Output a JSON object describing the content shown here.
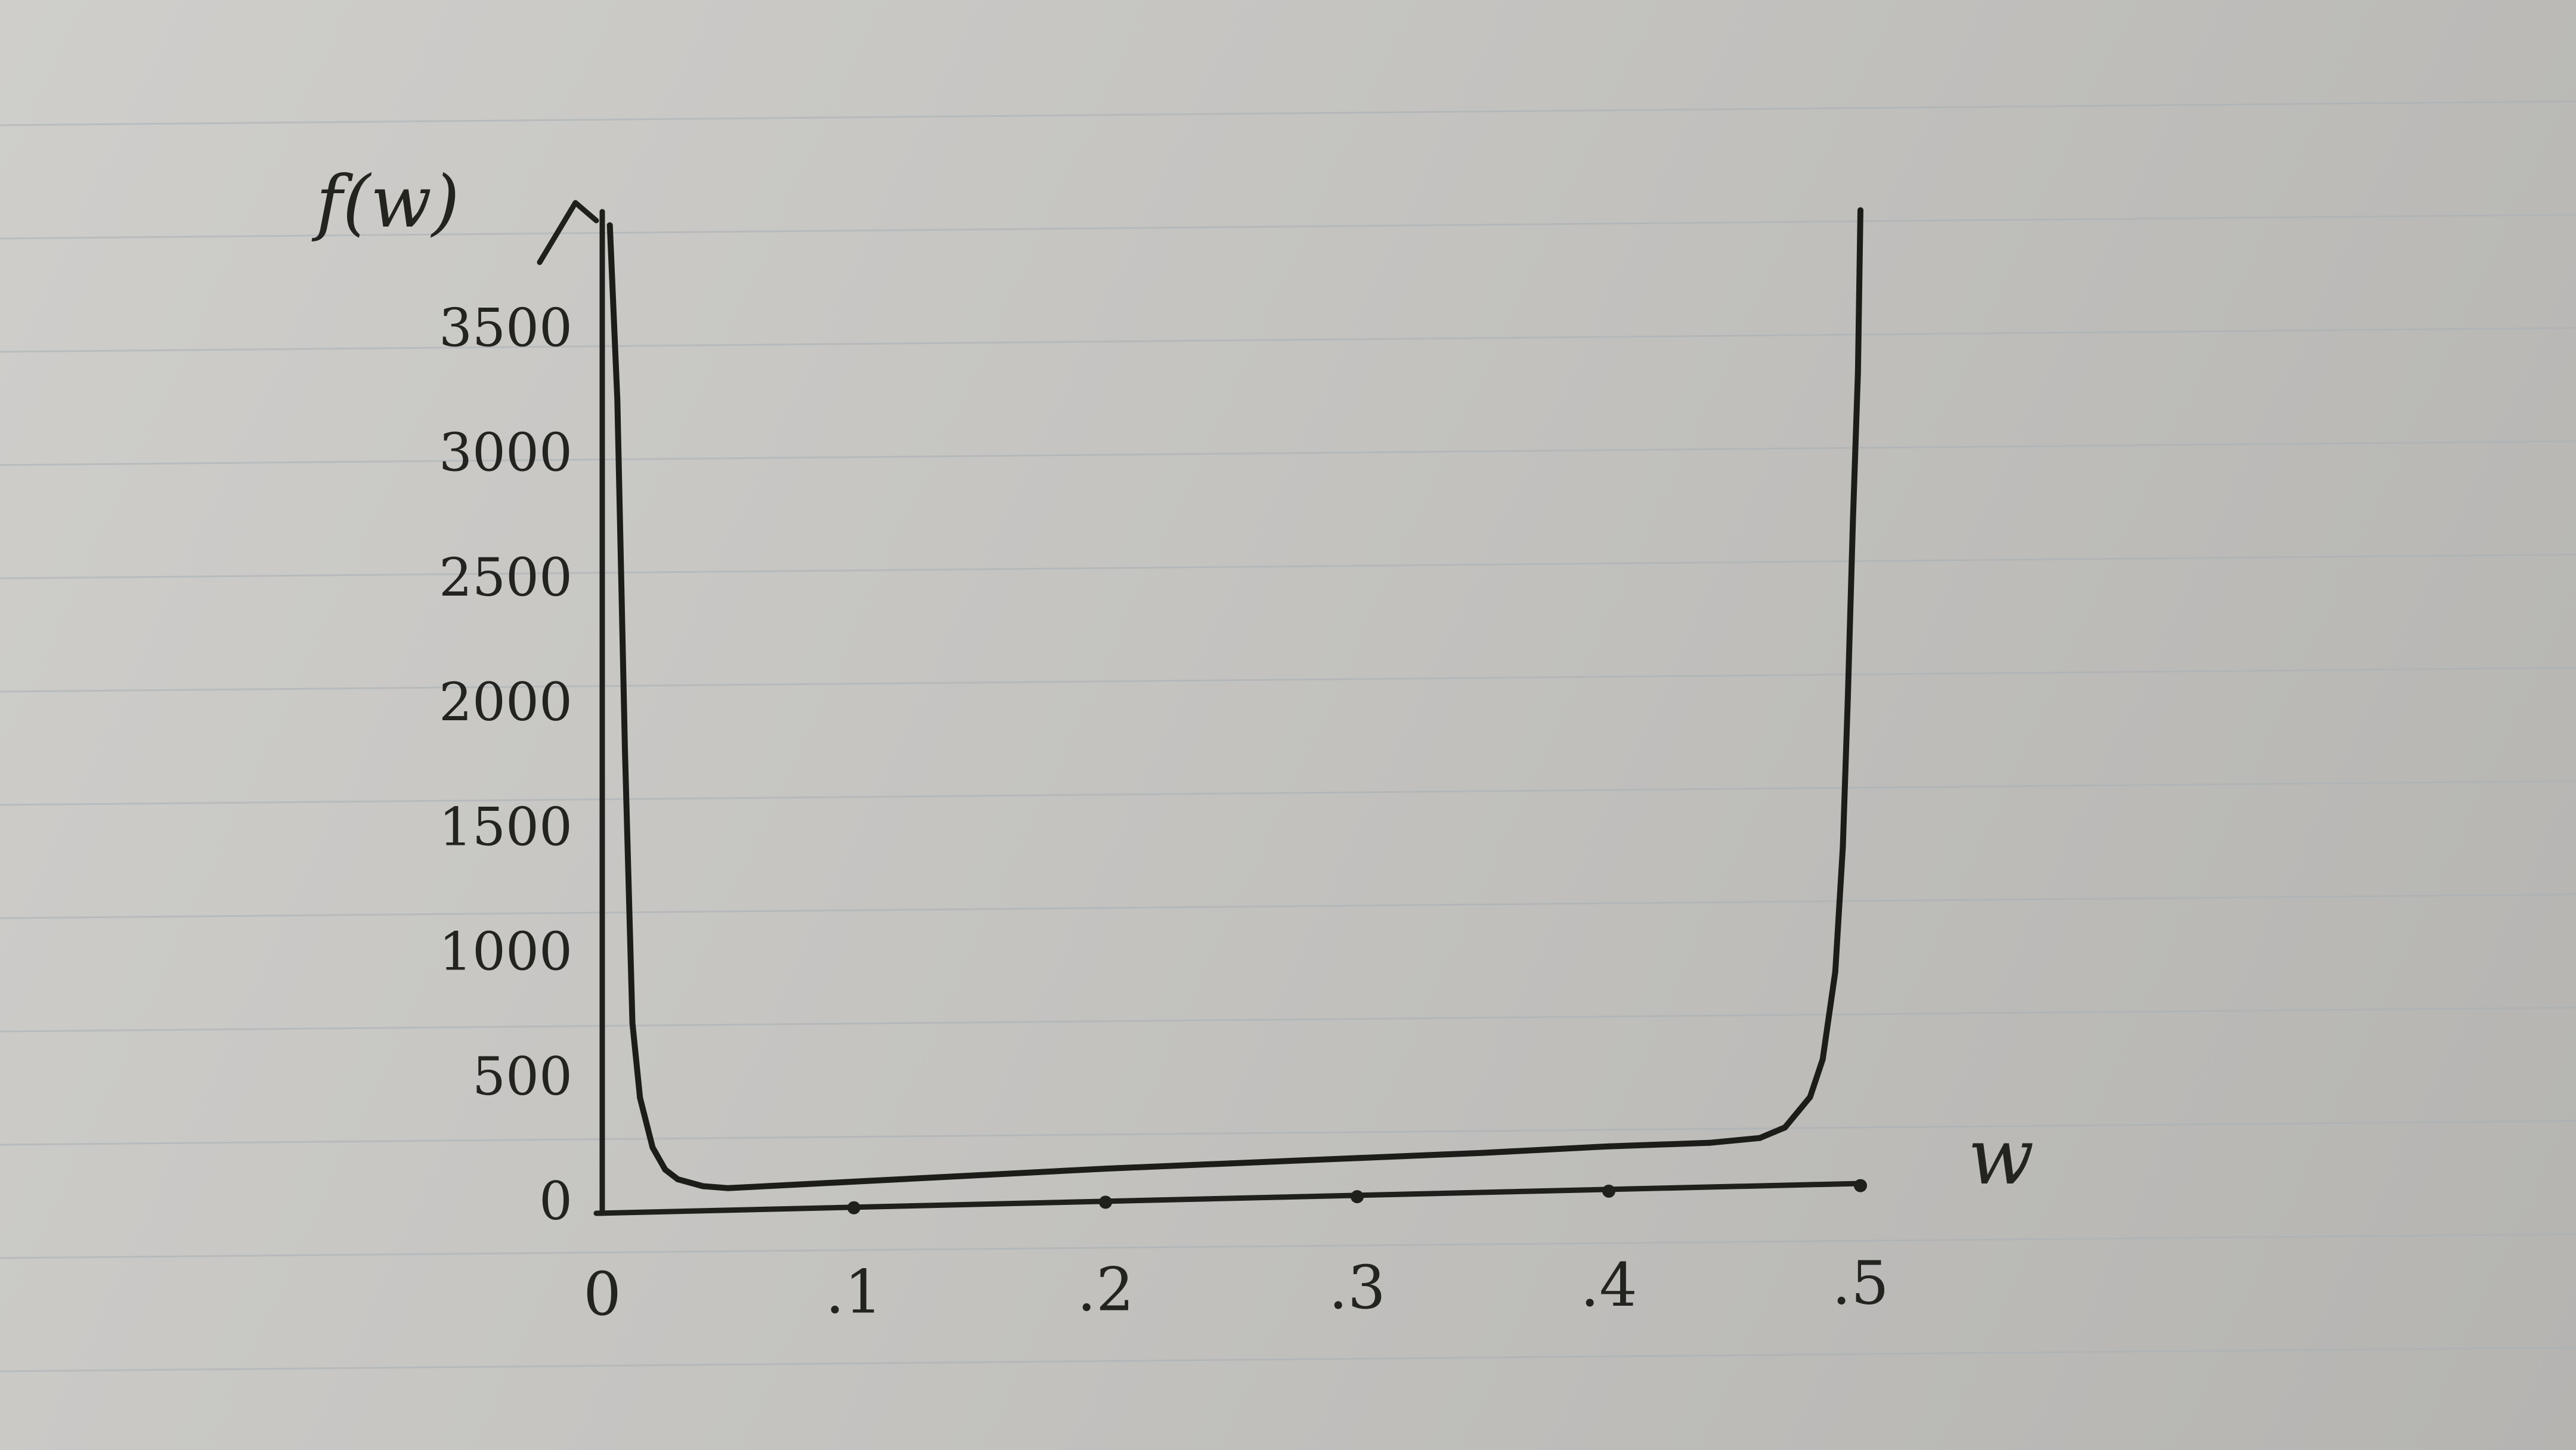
{
  "chart_data": {
    "type": "line",
    "title": "",
    "ylabel": "f(w)",
    "xlabel": "w",
    "xlim": [
      0,
      0.5
    ],
    "ylim": [
      0,
      3800
    ],
    "x_ticks": [
      {
        "value": 0,
        "label": "0"
      },
      {
        "value": 0.1,
        "label": ".1"
      },
      {
        "value": 0.2,
        "label": ".2"
      },
      {
        "value": 0.3,
        "label": ".3"
      },
      {
        "value": 0.4,
        "label": ".4"
      },
      {
        "value": 0.5,
        "label": ".5"
      }
    ],
    "y_ticks": [
      {
        "value": 0,
        "label": "0"
      },
      {
        "value": 500,
        "label": "500"
      },
      {
        "value": 1000,
        "label": "1000"
      },
      {
        "value": 1500,
        "label": "1500"
      },
      {
        "value": 2000,
        "label": "2000"
      },
      {
        "value": 2500,
        "label": "2500"
      },
      {
        "value": 3000,
        "label": "3000"
      },
      {
        "value": 3500,
        "label": "3500"
      }
    ],
    "grid": false,
    "series": [
      {
        "x": [
          0.003,
          0.006,
          0.009,
          0.012,
          0.015,
          0.02,
          0.025,
          0.03,
          0.04,
          0.05,
          0.1,
          0.15,
          0.2,
          0.25,
          0.3,
          0.35,
          0.4,
          0.44,
          0.46,
          0.47,
          0.48,
          0.485,
          0.49,
          0.493,
          0.495,
          0.497,
          0.499,
          0.5
        ],
        "y": [
          3900,
          3200,
          1800,
          700,
          400,
          200,
          110,
          70,
          40,
          30,
          45,
          60,
          75,
          85,
          95,
          105,
          120,
          125,
          140,
          180,
          300,
          450,
          800,
          1300,
          1900,
          2600,
          3200,
          3850
        ]
      }
    ]
  }
}
